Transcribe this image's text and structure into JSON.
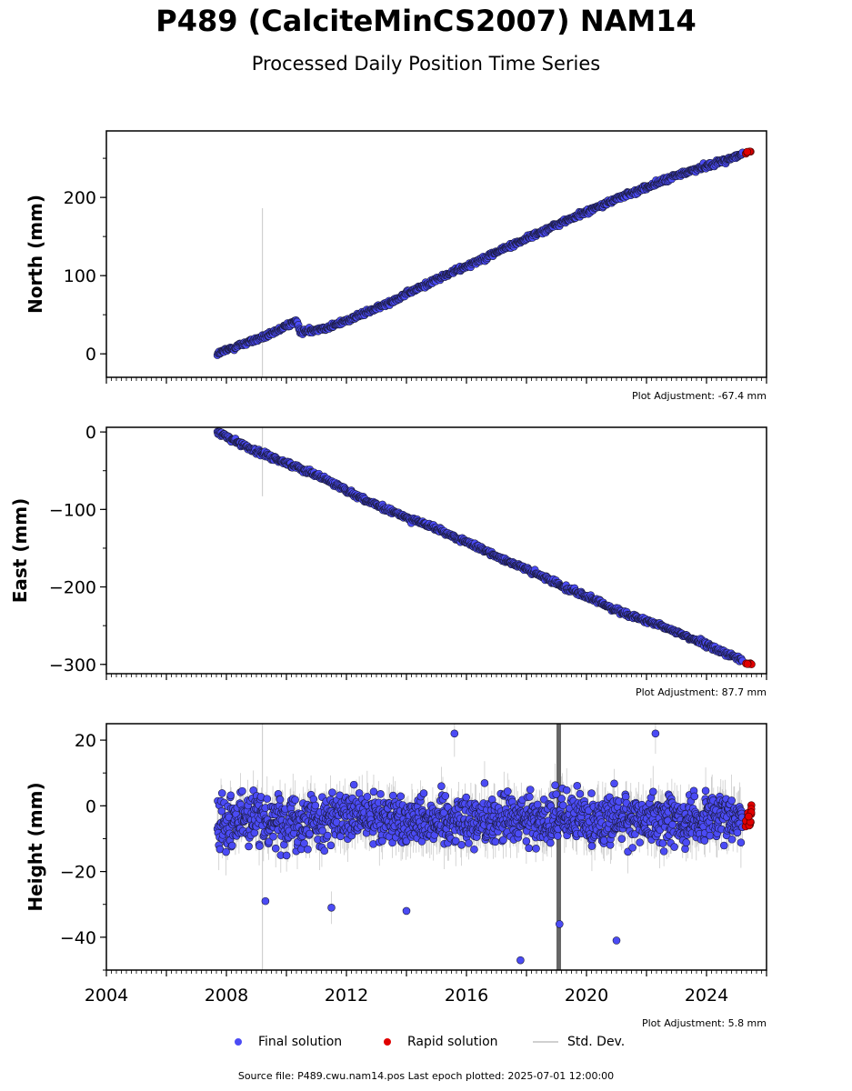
{
  "title": "P489 (CalciteMinCS2007) NAM14",
  "subtitle": "Processed Daily Position Time Series",
  "footer": "Source file: P489.cwu.nam14.pos  Last epoch plotted: 2025-07-01 12:00:00",
  "legend": {
    "final": "Final solution",
    "rapid": "Rapid solution",
    "std": "Std. Dev."
  },
  "colors": {
    "final": "#4b4bf5",
    "rapid": "#e00000",
    "std_dev": "#d0d0d0",
    "marker_edge": "#1a1a3a"
  },
  "chart_data": [
    {
      "type": "scatter",
      "ylabel": "North (mm)",
      "adjustment": "Plot Adjustment: -67.4 mm",
      "xlim": [
        2004,
        2026
      ],
      "ylim": [
        -30,
        285
      ],
      "yticks": [
        0,
        100,
        200
      ],
      "yticklabels": [
        "0",
        "100",
        "200"
      ],
      "series": [
        {
          "name": "Final solution",
          "x": [
            2007.7,
            2008.5,
            2009.5,
            2010.3,
            2010.5,
            2011.5,
            2013,
            2015,
            2017,
            2019,
            2021,
            2023,
            2025.2
          ],
          "y": [
            0,
            12,
            25,
            42,
            28,
            35,
            58,
            95,
            130,
            165,
            198,
            228,
            255
          ]
        },
        {
          "name": "Rapid solution",
          "x": [
            2025.3,
            2025.5
          ],
          "y": [
            257,
            259
          ]
        }
      ]
    },
    {
      "type": "scatter",
      "ylabel": "East (mm)",
      "adjustment": "Plot Adjustment: 87.7 mm",
      "xlim": [
        2004,
        2026
      ],
      "ylim": [
        -312,
        6
      ],
      "yticks": [
        0,
        -100,
        -200,
        -300
      ],
      "yticklabels": [
        "0",
        "−100",
        "−200",
        "−300"
      ],
      "series": [
        {
          "name": "Final solution",
          "x": [
            2007.7,
            2009,
            2011,
            2013,
            2015,
            2017,
            2019,
            2021,
            2023,
            2025.2
          ],
          "y": [
            0,
            -25,
            -55,
            -95,
            -125,
            -160,
            -195,
            -230,
            -258,
            -295
          ]
        },
        {
          "name": "Rapid solution",
          "x": [
            2025.3,
            2025.5
          ],
          "y": [
            -298,
            -300
          ]
        }
      ]
    },
    {
      "type": "scatter",
      "ylabel": "Height (mm)",
      "adjustment": "Plot Adjustment: 5.8 mm",
      "xlim": [
        2004,
        2026
      ],
      "ylim": [
        -50,
        25
      ],
      "yticks": [
        20,
        0,
        -20,
        -40
      ],
      "yticklabels": [
        "20",
        "0",
        "−20",
        "−40"
      ],
      "xticks": [
        2004,
        2008,
        2012,
        2016,
        2020,
        2024
      ],
      "xticklabels": [
        "2004",
        "2008",
        "2012",
        "2016",
        "2020",
        "2024"
      ],
      "y_mean": -4,
      "y_scatter_sd": 6,
      "outliers": {
        "x": [
          2009.3,
          2011.5,
          2014,
          2015.6,
          2017.8,
          2019.1,
          2021,
          2022.3
        ],
        "y": [
          -29,
          -31,
          -32,
          22,
          -47,
          -36,
          -41,
          22
        ]
      },
      "series": [
        {
          "name": "Final solution",
          "x": [
            2007.7,
            2025.2
          ],
          "y": [
            -4,
            -4
          ]
        },
        {
          "name": "Rapid solution",
          "x": [
            2025.3,
            2025.5
          ],
          "y": [
            -3,
            -3
          ]
        }
      ]
    }
  ]
}
